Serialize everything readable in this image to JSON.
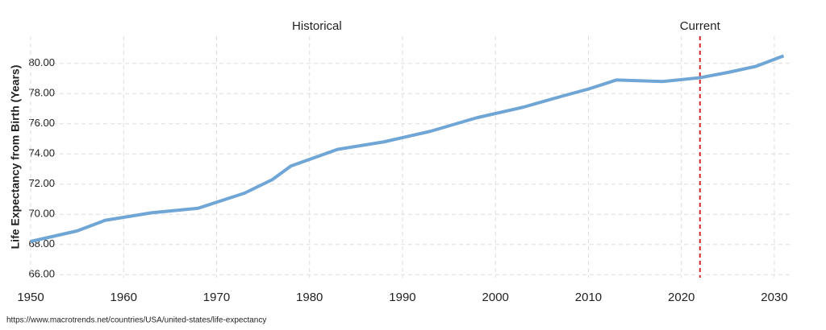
{
  "chart_data": {
    "type": "line",
    "y_label": "Life Expectancy from Birth (Years)",
    "annotations": [
      "Historical",
      "Current"
    ],
    "source": "https://www.macrotrends.net/countries/USA/united-states/life-expectancy",
    "x": [
      1950,
      1955,
      1958,
      1963,
      1968,
      1973,
      1976,
      1978,
      1983,
      1988,
      1993,
      1998,
      2003,
      2007,
      2010,
      2013,
      2018,
      2022,
      2025,
      2028,
      2031
    ],
    "series": [
      {
        "name": "Life Expectancy",
        "color": "#6fa6d6",
        "values": [
          68.2,
          68.9,
          69.6,
          70.1,
          70.4,
          71.4,
          72.3,
          73.2,
          74.3,
          74.8,
          75.5,
          76.4,
          77.1,
          77.8,
          78.3,
          78.9,
          78.8,
          79.05,
          79.4,
          79.8,
          80.5
        ]
      }
    ],
    "current_x": 2022,
    "current_color": "#d62728",
    "xlim": [
      1950,
      2032
    ],
    "xticks": [
      1950,
      1960,
      1970,
      1980,
      1990,
      2000,
      2010,
      2020,
      2030
    ],
    "ylim": [
      65.8,
      81.8
    ],
    "yticks": [
      {
        "value": 66,
        "label": "66.00"
      },
      {
        "value": 68,
        "label": "68.00"
      },
      {
        "value": 70,
        "label": "70.00"
      },
      {
        "value": 72,
        "label": "72.00"
      },
      {
        "value": 74,
        "label": "74.00"
      },
      {
        "value": 76,
        "label": "76.00"
      },
      {
        "value": 78,
        "label": "78.00"
      },
      {
        "value": 80,
        "label": "80.00"
      }
    ],
    "grid": true
  }
}
